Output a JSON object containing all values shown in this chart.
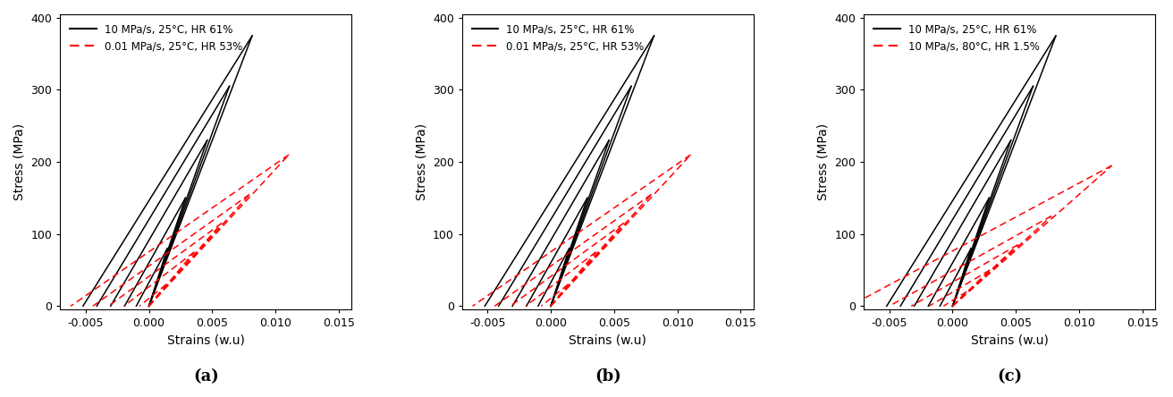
{
  "subplots": [
    {
      "label": "(a)",
      "legend": [
        {
          "text": "10 MPa/s, 25°C, HR 61%",
          "color": "black",
          "linestyle": "solid"
        },
        {
          "text": "0.01 MPa/s, 25°C, HR 53%",
          "color": "red",
          "linestyle": "dashed"
        }
      ]
    },
    {
      "label": "(b)",
      "legend": [
        {
          "text": "10 MPa/s, 25°C, HR 61%",
          "color": "black",
          "linestyle": "solid"
        },
        {
          "text": "0.01 MPa/s, 25°C, HR 53%",
          "color": "red",
          "linestyle": "dashed"
        }
      ]
    },
    {
      "label": "(c)",
      "legend": [
        {
          "text": "10 MPa/s, 25°C, HR 61%",
          "color": "black",
          "linestyle": "solid"
        },
        {
          "text": "10 MPa/s, 80°C, HR 1.5%",
          "color": "red",
          "linestyle": "dashed"
        }
      ]
    }
  ],
  "xlim": [
    -0.007,
    0.016
  ],
  "ylim": [
    -5,
    405
  ],
  "xlabel": "Strains (w.u)",
  "ylabel": "Stress (MPa)",
  "xticks": [
    -0.005,
    0.0,
    0.005,
    0.01,
    0.015
  ],
  "yticks": [
    0,
    100,
    200,
    300,
    400
  ],
  "black_cycles": {
    "max_stresses": [
      80,
      150,
      230,
      305,
      375
    ],
    "load_slopes": [
      55000,
      52000,
      50000,
      48000,
      46000
    ],
    "unload_slopes": [
      55000,
      52000,
      50000,
      48000,
      46000
    ],
    "unload_neg_slopes": [
      80000,
      78000,
      76000,
      74000,
      72000
    ]
  },
  "red_ab_cycles": {
    "max_stresses": [
      30,
      75,
      115,
      155,
      210
    ],
    "load_slopes": [
      22000,
      21000,
      20000,
      19500,
      19000
    ],
    "unload_neg_slopes": [
      40000,
      38000,
      36000,
      35000,
      34000
    ]
  },
  "red_c_cycles": {
    "max_stresses": [
      20,
      50,
      85,
      125,
      195
    ],
    "load_slopes": [
      18000,
      17000,
      16500,
      16000,
      15500
    ],
    "unload_neg_slopes": [
      28000,
      27000,
      26000,
      25000,
      24000
    ]
  }
}
